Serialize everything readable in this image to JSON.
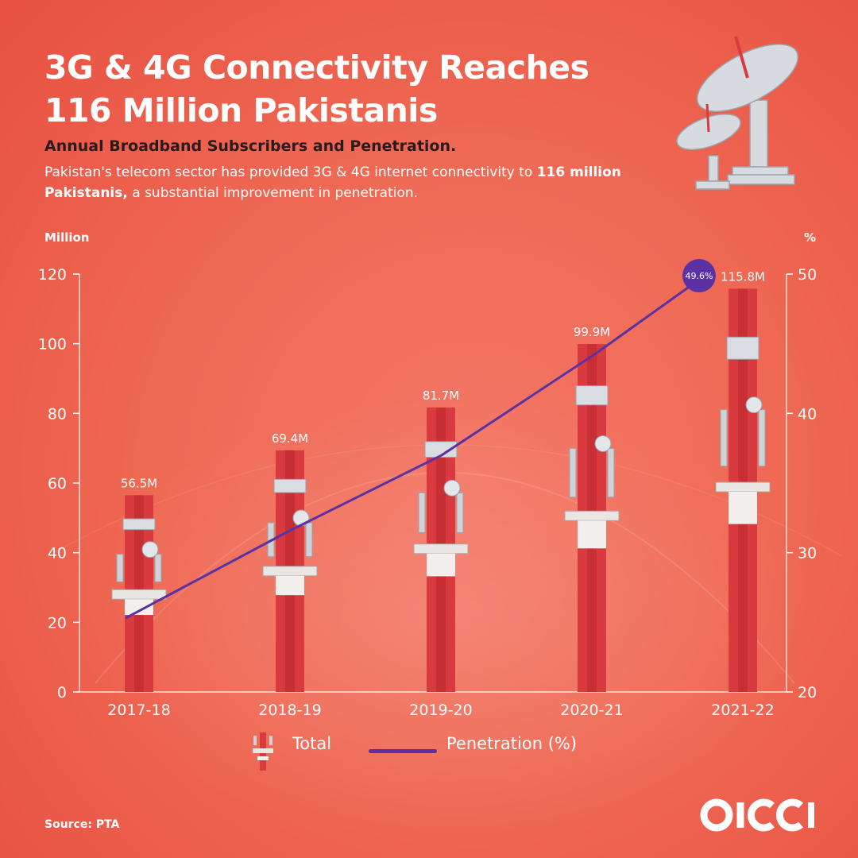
{
  "header": {
    "title": "3G & 4G Connectivity Reaches 116 Million Pakistanis",
    "subtitle": "Annual Broadband Subscribers and Penetration.",
    "description_prefix": "Pakistan's telecom sector has provided 3G & 4G internet connectivity to",
    "description_bold": "116 million Pakistanis,",
    "description_suffix": "a substantial improvement in penetration."
  },
  "footer": {
    "source": "Source: PTA",
    "logo_text": "OICCI"
  },
  "colors": {
    "background": "#ef6a55",
    "bar_red": "#d93a3f",
    "bar_white": "#f2efec",
    "line": "#5c31a3",
    "axis": "#ffffff"
  },
  "chart_data": {
    "type": "bar",
    "categories": [
      "2017-18",
      "2018-19",
      "2019-20",
      "2020-21",
      "2021-22"
    ],
    "series": [
      {
        "name": "Total",
        "type": "bar",
        "axis": "left",
        "values": [
          56.5,
          69.4,
          81.7,
          99.9,
          115.8
        ],
        "labels": [
          "56.5M",
          "69.4M",
          "81.7M",
          "99.9M",
          "115.8M"
        ]
      },
      {
        "name": "Penetration (%)",
        "type": "line",
        "axis": "right",
        "values": [
          25.3,
          31.5,
          37.0,
          44.3,
          49.6
        ],
        "labels": [
          "",
          "",
          "",
          "",
          "49.6%"
        ]
      }
    ],
    "y_left": {
      "label": "Million",
      "min": 0,
      "max": 120,
      "ticks": [
        0,
        20,
        40,
        60,
        80,
        100,
        120
      ]
    },
    "y_right": {
      "label": "%",
      "min": 20,
      "max": 50,
      "ticks": [
        20,
        30,
        40,
        50
      ]
    },
    "legend": {
      "position": "bottom-center",
      "items": [
        "Total",
        "Penetration (%)"
      ]
    },
    "grid": false
  }
}
